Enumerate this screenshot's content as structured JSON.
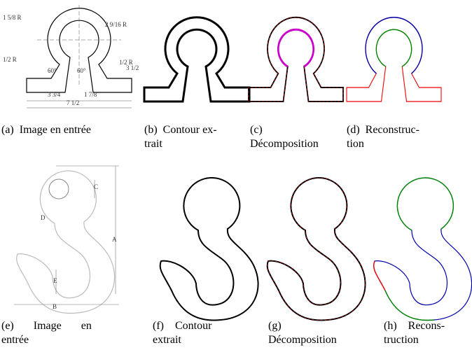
{
  "figures": [
    {
      "caption": [
        "(a)  Image en entrée"
      ],
      "annotations": [
        "1 5/8 R",
        "2 9/16 R",
        "1/2 R",
        "1/2 R",
        "60°",
        "60°",
        "3 3/4",
        "1 7/8",
        "7 1/2",
        "3 1/2"
      ]
    },
    {
      "caption": [
        "(b)  Contour ex-",
        "trait"
      ]
    },
    {
      "caption": [
        "(c)",
        "Décomposition"
      ]
    },
    {
      "caption": [
        "(d)  Reconstruc-",
        "tion"
      ]
    },
    {
      "caption": [
        "(e)       Image       en",
        "entrée"
      ],
      "annotations": [
        "C",
        "D",
        "A",
        "E",
        "B"
      ]
    },
    {
      "caption": [
        "(f)    Contour",
        "extrait"
      ]
    },
    {
      "caption": [
        "(g)",
        "Décomposition"
      ]
    },
    {
      "caption": [
        "(h)    Recons-",
        "truction"
      ]
    }
  ]
}
